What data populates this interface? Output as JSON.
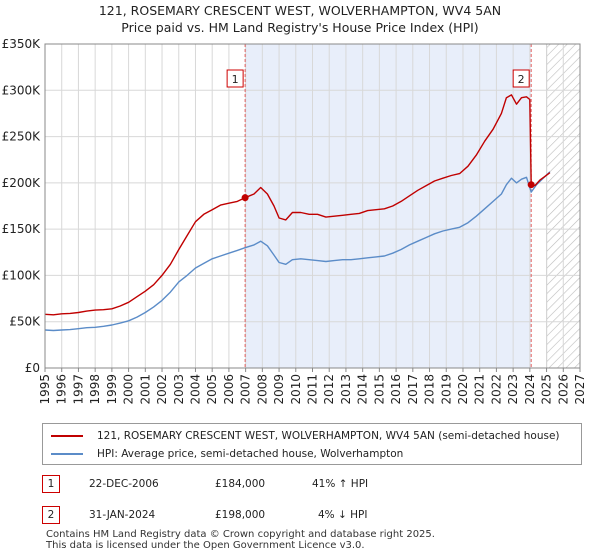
{
  "title_line1": "121, ROSEMARY CRESCENT WEST, WOLVERHAMPTON, WV4 5AN",
  "title_line2": "Price paid vs. HM Land Registry's House Price Index (HPI)",
  "colors": {
    "property": "#c00000",
    "hpi": "#5b8cc8",
    "shade": "#e8eefa",
    "marker": "#e06060"
  },
  "chart_data": {
    "type": "line",
    "x_range": [
      1995,
      2027
    ],
    "ylim": [
      0,
      350000
    ],
    "y_ticks": [
      0,
      50000,
      100000,
      150000,
      200000,
      250000,
      300000,
      350000
    ],
    "y_tick_labels": [
      "£0",
      "£50K",
      "£100K",
      "£150K",
      "£200K",
      "£250K",
      "£300K",
      "£350K"
    ],
    "x_ticks": [
      "1995",
      "1996",
      "1997",
      "1998",
      "1999",
      "2000",
      "2001",
      "2002",
      "2003",
      "2004",
      "2005",
      "2006",
      "2007",
      "2008",
      "2009",
      "2010",
      "2011",
      "2012",
      "2013",
      "2014",
      "2015",
      "2016",
      "2017",
      "2018",
      "2019",
      "2020",
      "2021",
      "2022",
      "2023",
      "2024",
      "2025",
      "2026",
      "2027"
    ],
    "shaded_span": [
      2006.97,
      2024.08
    ],
    "hatch_from": 2025.0,
    "series": [
      {
        "name": "121, ROSEMARY CRESCENT WEST, WOLVERHAMPTON, WV4 5AN (semi-detached house)",
        "points": [
          [
            1995.0,
            58000
          ],
          [
            1995.5,
            57500
          ],
          [
            1996.0,
            58500
          ],
          [
            1996.5,
            59000
          ],
          [
            1997.0,
            60000
          ],
          [
            1997.5,
            61500
          ],
          [
            1998.0,
            62500
          ],
          [
            1998.5,
            63000
          ],
          [
            1999.0,
            64000
          ],
          [
            1999.5,
            67000
          ],
          [
            2000.0,
            71000
          ],
          [
            2000.5,
            77000
          ],
          [
            2001.0,
            83000
          ],
          [
            2001.5,
            90000
          ],
          [
            2002.0,
            100000
          ],
          [
            2002.5,
            112000
          ],
          [
            2003.0,
            128000
          ],
          [
            2003.5,
            143000
          ],
          [
            2004.0,
            158000
          ],
          [
            2004.5,
            166000
          ],
          [
            2005.0,
            171000
          ],
          [
            2005.5,
            176000
          ],
          [
            2006.0,
            178000
          ],
          [
            2006.5,
            180000
          ],
          [
            2006.97,
            184000
          ],
          [
            2007.5,
            188000
          ],
          [
            2007.9,
            195000
          ],
          [
            2008.3,
            188000
          ],
          [
            2008.7,
            175000
          ],
          [
            2009.0,
            162000
          ],
          [
            2009.4,
            160000
          ],
          [
            2009.8,
            168000
          ],
          [
            2010.3,
            168000
          ],
          [
            2010.8,
            166000
          ],
          [
            2011.3,
            166000
          ],
          [
            2011.8,
            163000
          ],
          [
            2012.3,
            164000
          ],
          [
            2012.8,
            165000
          ],
          [
            2013.3,
            166000
          ],
          [
            2013.8,
            167000
          ],
          [
            2014.3,
            170000
          ],
          [
            2014.8,
            171000
          ],
          [
            2015.3,
            172000
          ],
          [
            2015.8,
            175000
          ],
          [
            2016.3,
            180000
          ],
          [
            2016.8,
            186000
          ],
          [
            2017.3,
            192000
          ],
          [
            2017.8,
            197000
          ],
          [
            2018.3,
            202000
          ],
          [
            2018.8,
            205000
          ],
          [
            2019.3,
            208000
          ],
          [
            2019.8,
            210000
          ],
          [
            2020.3,
            218000
          ],
          [
            2020.8,
            230000
          ],
          [
            2021.3,
            245000
          ],
          [
            2021.8,
            258000
          ],
          [
            2022.3,
            275000
          ],
          [
            2022.6,
            292000
          ],
          [
            2022.9,
            295000
          ],
          [
            2023.2,
            285000
          ],
          [
            2023.5,
            292000
          ],
          [
            2023.8,
            293000
          ],
          [
            2024.0,
            290000
          ],
          [
            2024.08,
            198000
          ],
          [
            2024.3,
            197000
          ],
          [
            2024.6,
            203000
          ],
          [
            2024.9,
            207000
          ],
          [
            2025.2,
            211000
          ]
        ]
      },
      {
        "name": "HPI: Average price, semi-detached house, Wolverhampton",
        "points": [
          [
            1995.0,
            41000
          ],
          [
            1995.5,
            40500
          ],
          [
            1996.0,
            41000
          ],
          [
            1996.5,
            41500
          ],
          [
            1997.0,
            42500
          ],
          [
            1997.5,
            43500
          ],
          [
            1998.0,
            44000
          ],
          [
            1998.5,
            45000
          ],
          [
            1999.0,
            46500
          ],
          [
            1999.5,
            48500
          ],
          [
            2000.0,
            51000
          ],
          [
            2000.5,
            55000
          ],
          [
            2001.0,
            60000
          ],
          [
            2001.5,
            66000
          ],
          [
            2002.0,
            73000
          ],
          [
            2002.5,
            82000
          ],
          [
            2003.0,
            93000
          ],
          [
            2003.5,
            100000
          ],
          [
            2004.0,
            108000
          ],
          [
            2004.5,
            113000
          ],
          [
            2005.0,
            118000
          ],
          [
            2005.5,
            121000
          ],
          [
            2006.0,
            124000
          ],
          [
            2006.5,
            127000
          ],
          [
            2006.97,
            130000
          ],
          [
            2007.5,
            133000
          ],
          [
            2007.9,
            137000
          ],
          [
            2008.3,
            132000
          ],
          [
            2008.7,
            122000
          ],
          [
            2009.0,
            114000
          ],
          [
            2009.4,
            112000
          ],
          [
            2009.8,
            117000
          ],
          [
            2010.3,
            118000
          ],
          [
            2010.8,
            117000
          ],
          [
            2011.3,
            116000
          ],
          [
            2011.8,
            115000
          ],
          [
            2012.3,
            116000
          ],
          [
            2012.8,
            117000
          ],
          [
            2013.3,
            117000
          ],
          [
            2013.8,
            118000
          ],
          [
            2014.3,
            119000
          ],
          [
            2014.8,
            120000
          ],
          [
            2015.3,
            121000
          ],
          [
            2015.8,
            124000
          ],
          [
            2016.3,
            128000
          ],
          [
            2016.8,
            133000
          ],
          [
            2017.3,
            137000
          ],
          [
            2017.8,
            141000
          ],
          [
            2018.3,
            145000
          ],
          [
            2018.8,
            148000
          ],
          [
            2019.3,
            150000
          ],
          [
            2019.8,
            152000
          ],
          [
            2020.3,
            157000
          ],
          [
            2020.8,
            164000
          ],
          [
            2021.3,
            172000
          ],
          [
            2021.8,
            180000
          ],
          [
            2022.3,
            188000
          ],
          [
            2022.6,
            198000
          ],
          [
            2022.9,
            205000
          ],
          [
            2023.2,
            200000
          ],
          [
            2023.5,
            204000
          ],
          [
            2023.8,
            206000
          ],
          [
            2024.08,
            190000
          ],
          [
            2024.4,
            198000
          ],
          [
            2024.8,
            205000
          ],
          [
            2025.2,
            212000
          ]
        ]
      }
    ],
    "sales": [
      {
        "label": "1",
        "x": 2006.97,
        "price": 184000
      },
      {
        "label": "2",
        "x": 2024.08,
        "price": 198000
      }
    ]
  },
  "legend": {
    "property": "121, ROSEMARY CRESCENT WEST, WOLVERHAMPTON, WV4 5AN (semi-detached house)",
    "hpi": "HPI: Average price, semi-detached house, Wolverhampton"
  },
  "annotations": [
    {
      "num": "1",
      "date": "22-DEC-2006",
      "price": "£184,000",
      "hpi": "41% ↑ HPI"
    },
    {
      "num": "2",
      "date": "31-JAN-2024",
      "price": "£198,000",
      "hpi": "4% ↓ HPI"
    }
  ],
  "footer_line1": "Contains HM Land Registry data © Crown copyright and database right 2025.",
  "footer_line2": "This data is licensed under the Open Government Licence v3.0."
}
